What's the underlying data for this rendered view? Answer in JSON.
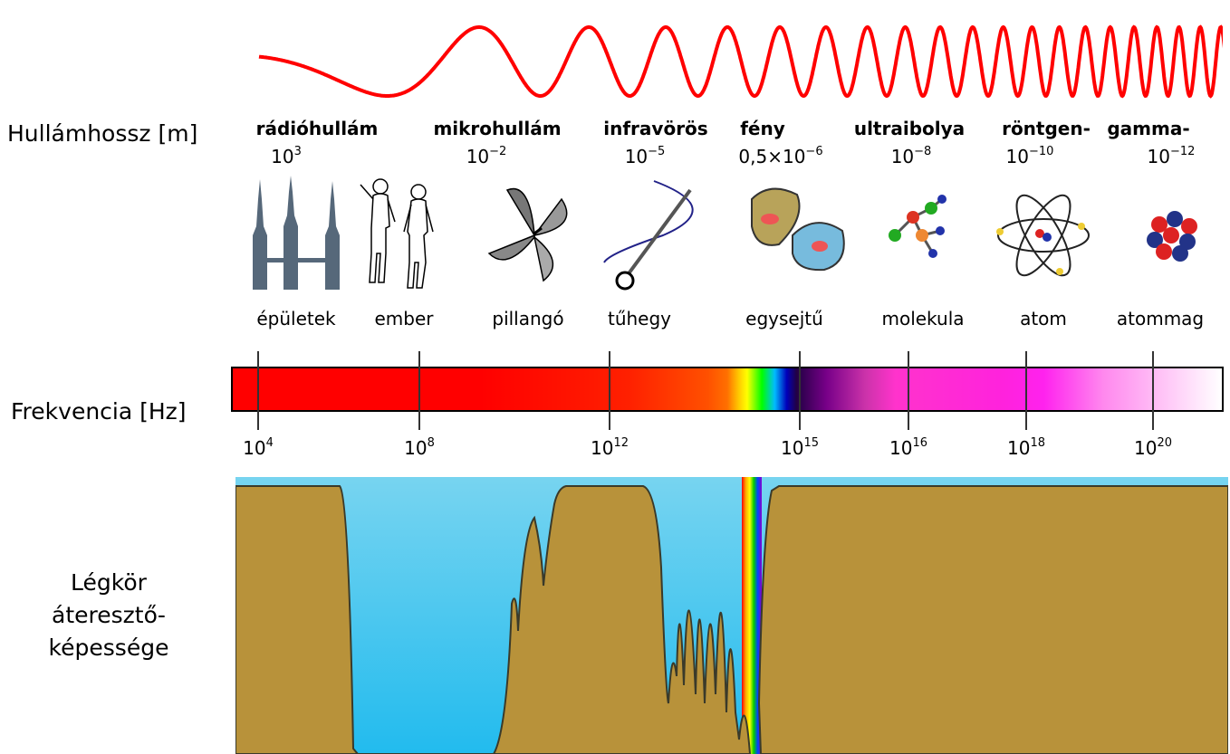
{
  "labels": {
    "wavelength": "Hullámhossz [m]",
    "frequency": "Frekvencia [Hz]",
    "atmosphere_line1": "Légkör",
    "atmosphere_line2": "áteresztő-",
    "atmosphere_line3": "képessége"
  },
  "bands": [
    {
      "name": "rádióhullám",
      "wl_base": "10",
      "wl_exp": "3",
      "object": "épületek",
      "icon": "buildings-icon"
    },
    {
      "name": "mikrohullám",
      "wl_base": "10",
      "wl_exp": "−2",
      "object": "ember",
      "icon": "humans-icon"
    },
    {
      "name": "infravörös",
      "wl_base": "10",
      "wl_exp": "−5",
      "object": "tűhegy",
      "icon": "needle-icon"
    },
    {
      "name": "fény",
      "wl_base": "0,5×10",
      "wl_exp": "−6",
      "object": "egysejtű",
      "icon": "cell-icon"
    },
    {
      "name": "ultraibolya",
      "wl_base": "10",
      "wl_exp": "−8",
      "object": "molekula",
      "icon": "molecule-icon"
    },
    {
      "name": "röntgen-",
      "wl_base": "10",
      "wl_exp": "−10",
      "object": "atom",
      "icon": "atom-icon"
    },
    {
      "name": "gamma-",
      "wl_base": "10",
      "wl_exp": "−12",
      "object": "atommag",
      "icon": "nucleus-icon"
    }
  ],
  "extra_object": {
    "object": "pillangó",
    "icon": "butterfly-icon"
  },
  "frequencies": [
    {
      "base": "10",
      "exp": "4"
    },
    {
      "base": "10",
      "exp": "8"
    },
    {
      "base": "10",
      "exp": "12"
    },
    {
      "base": "10",
      "exp": "15"
    },
    {
      "base": "10",
      "exp": "16"
    },
    {
      "base": "10",
      "exp": "18"
    },
    {
      "base": "10",
      "exp": "20"
    }
  ],
  "colors": {
    "wave": "#ff0000",
    "sky": "#55ccee",
    "ground": "#b8923a",
    "building": "#56687a"
  }
}
